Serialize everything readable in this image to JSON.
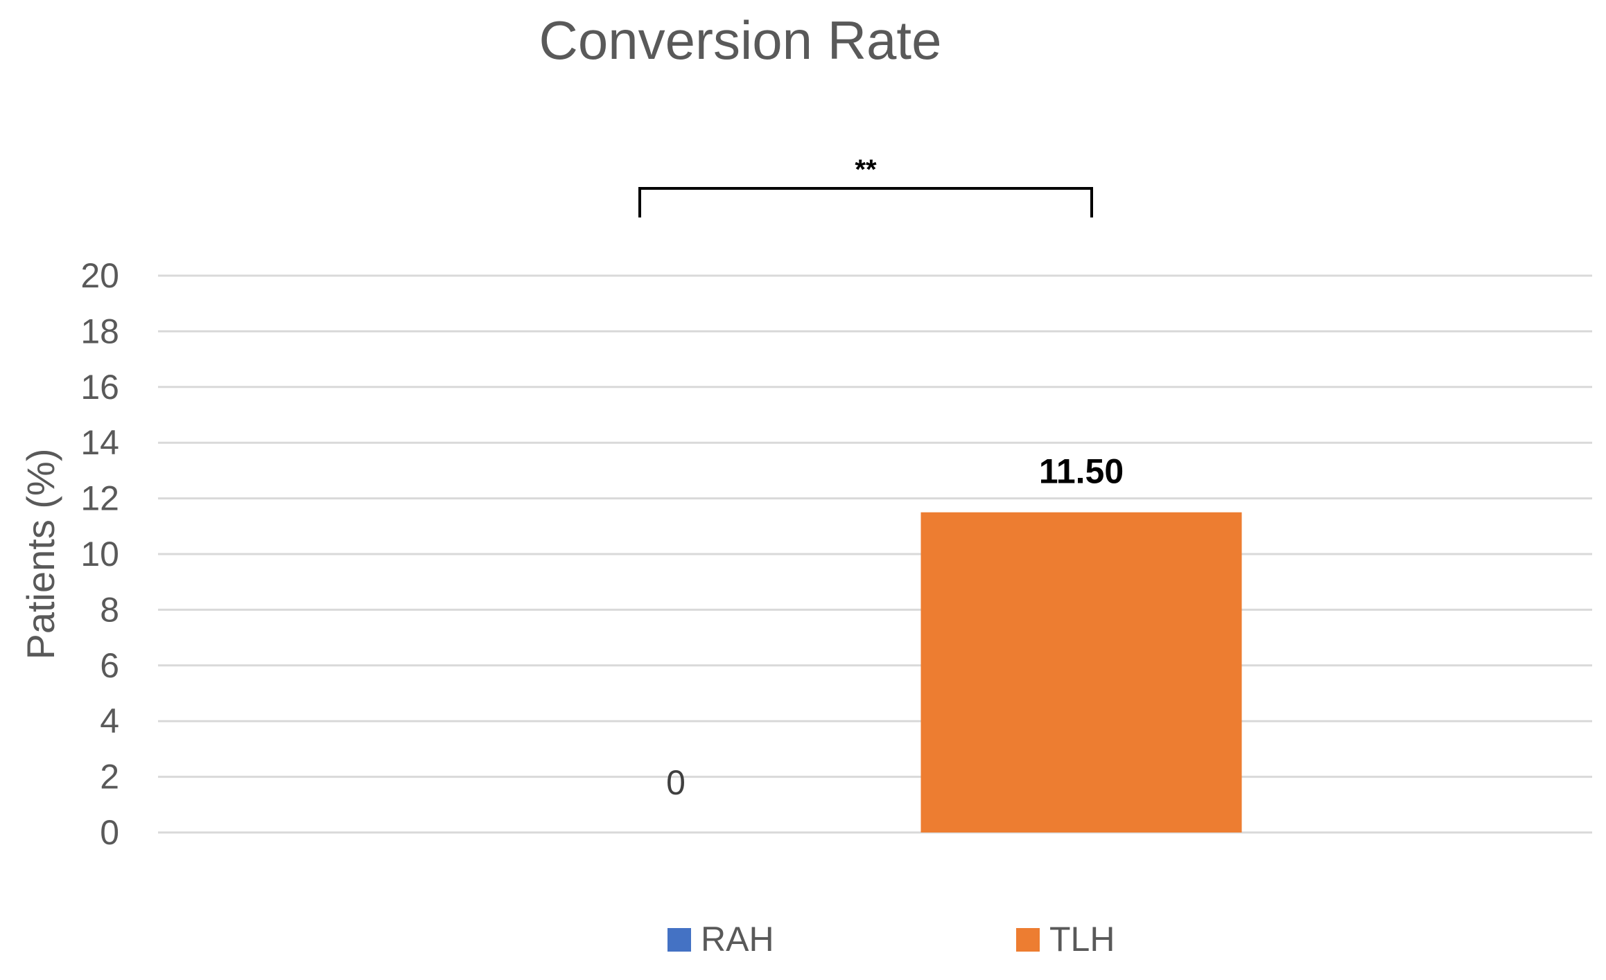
{
  "chart_data": {
    "type": "bar",
    "title": "Conversion Rate",
    "xlabel": "",
    "ylabel": "Patients  (%)",
    "ylim": [
      0,
      20
    ],
    "yticks": [
      0,
      2,
      4,
      6,
      8,
      10,
      12,
      14,
      16,
      18,
      20
    ],
    "grid": true,
    "categories": [
      "RAH",
      "TLH"
    ],
    "values": [
      0,
      11.5
    ],
    "data_labels": [
      "0",
      "11.50"
    ],
    "colors": [
      "#4472C4",
      "#ED7D31"
    ],
    "legend": {
      "position": "bottom",
      "entries": [
        {
          "label": "RAH",
          "color": "#4472C4"
        },
        {
          "label": "TLH",
          "color": "#ED7D31"
        }
      ]
    },
    "annotations": [
      {
        "type": "significance-bracket",
        "text": "**",
        "between": [
          "RAH",
          "TLH"
        ]
      }
    ]
  }
}
